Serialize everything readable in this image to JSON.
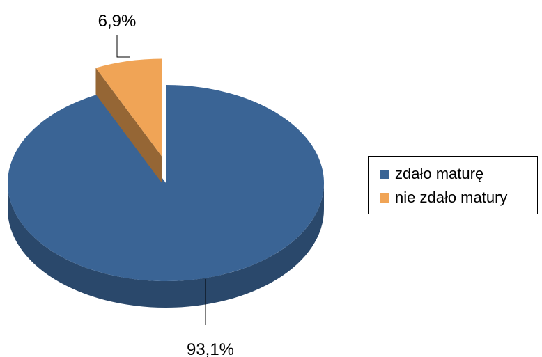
{
  "chart_data": {
    "type": "pie",
    "title": "",
    "categories": [
      "zdało maturę",
      "nie zdało matury"
    ],
    "values": [
      93.1,
      6.9
    ],
    "data_labels": [
      "93,1%",
      "6,9%"
    ],
    "colors": [
      "#3A6495",
      "#F0A456"
    ],
    "legend_position": "right",
    "exploded": [
      false,
      true
    ],
    "style": "3d"
  }
}
